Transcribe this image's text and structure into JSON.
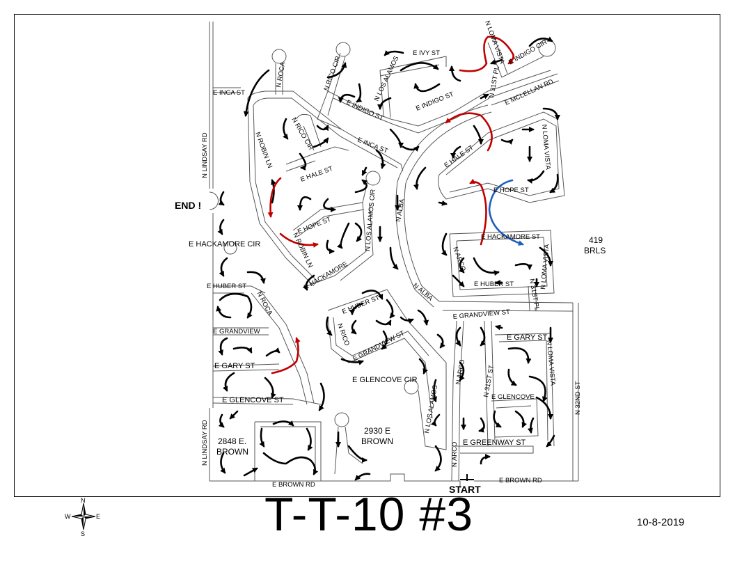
{
  "map": {
    "title": "T-T-10 #3",
    "date": "10-8-2019",
    "markers": {
      "start": "START",
      "end": "END !"
    },
    "compass": {
      "n": "N",
      "s": "S",
      "e": "E",
      "w": "W"
    },
    "areas": {
      "brls_num": "419",
      "brls": "BRLS",
      "brown2930_a": "2930 E",
      "brown2930_b": "BROWN",
      "brown2848_a": "2848 E.",
      "brown2848_b": "BROWN"
    },
    "streets": {
      "e_inca_st_w": "E INCA ST",
      "n_lindsay_rd_top": "N LINDSAY RD",
      "n_lindsay_rd_bottom": "N LINDSAY RD",
      "n_roca_top": "N ROCA",
      "n_rico_cir_top": "N RICO CIR",
      "n_los_alamos_top": "N LOS ALAMOS",
      "e_ivy_st": "E IVY ST",
      "n_loma_vista_top": "N LOMA VISTA",
      "e_indigo_cir": "E INDIGO CIR",
      "n_31st_pl_top": "N 31ST PL",
      "e_mcllellan_rd": "E MCLELLAN RD",
      "e_indigo_st_w": "E INDIGO ST",
      "e_indigo_st_e": "E INDIGO ST",
      "n_rico_cir_mid": "N RICO CIR",
      "e_inca_st_mid": "E INCA ST",
      "n_robin_ln": "N ROBIN LN",
      "e_hale_st_w": "E HALE ST",
      "e_hale_st_e": "E HALE ST",
      "n_loma_vista_mid": "N LOMA VISTA",
      "e_hope_st_e": "E HOPE ST",
      "n_alba": "N ALBA",
      "n_los_alamos_cir": "N LOS ALAMOS CIR",
      "e_hope_st_w": "E HOPE ST",
      "n_robin_ln_lower": "N ROBIN LN",
      "e_hackamore_cir": "E HACKAMORE CIR",
      "e_hackamore_w": "E HACKAMORE",
      "e_hackamore_st_e": "E HACKAMORE ST",
      "n_arco_mid": "N ARCO",
      "n_loma_vista_lower": "N LOMA VISTA",
      "e_huber_st_w": "E HUBER ST",
      "e_huber_st_mid": "E HUBER ST",
      "e_huber_st_e": "E HUBER ST",
      "n_31st_pl_mid": "N 31ST PL",
      "n_roca_lower": "N ROCA",
      "n_alba_lower": "N ALBA",
      "e_grandview_st_e": "E GRANDVIEW ST",
      "e_grandview_w": "E GRANDVIEW",
      "n_rico_lower": "N RICO",
      "e_grandview_st_mid": "E GRANDVIEW ST",
      "e_gary_st_e": "E GARY ST",
      "e_gary_st_w": "E GARY ST",
      "n_arco_lower": "N ARCO",
      "n_31st_st": "N 31ST ST",
      "n_loma_vista_bottom": "N LOMA VISTA",
      "e_glencove_cir": "E GLENCOVE CIR",
      "n_los_alamos_lower": "N LOS ALAMOS",
      "e_glencove_st": "E GLENCOVE ST",
      "e_glencove_e": "E GLENCOVE",
      "n_32nd_st": "N 32ND ST",
      "n_arco_bottom": "N ARCO",
      "e_greenway_st": "E GREENWAY ST",
      "e_brown_rd_w": "E BROWN RD",
      "e_brown_rd_e": "E BROWN RD"
    }
  }
}
